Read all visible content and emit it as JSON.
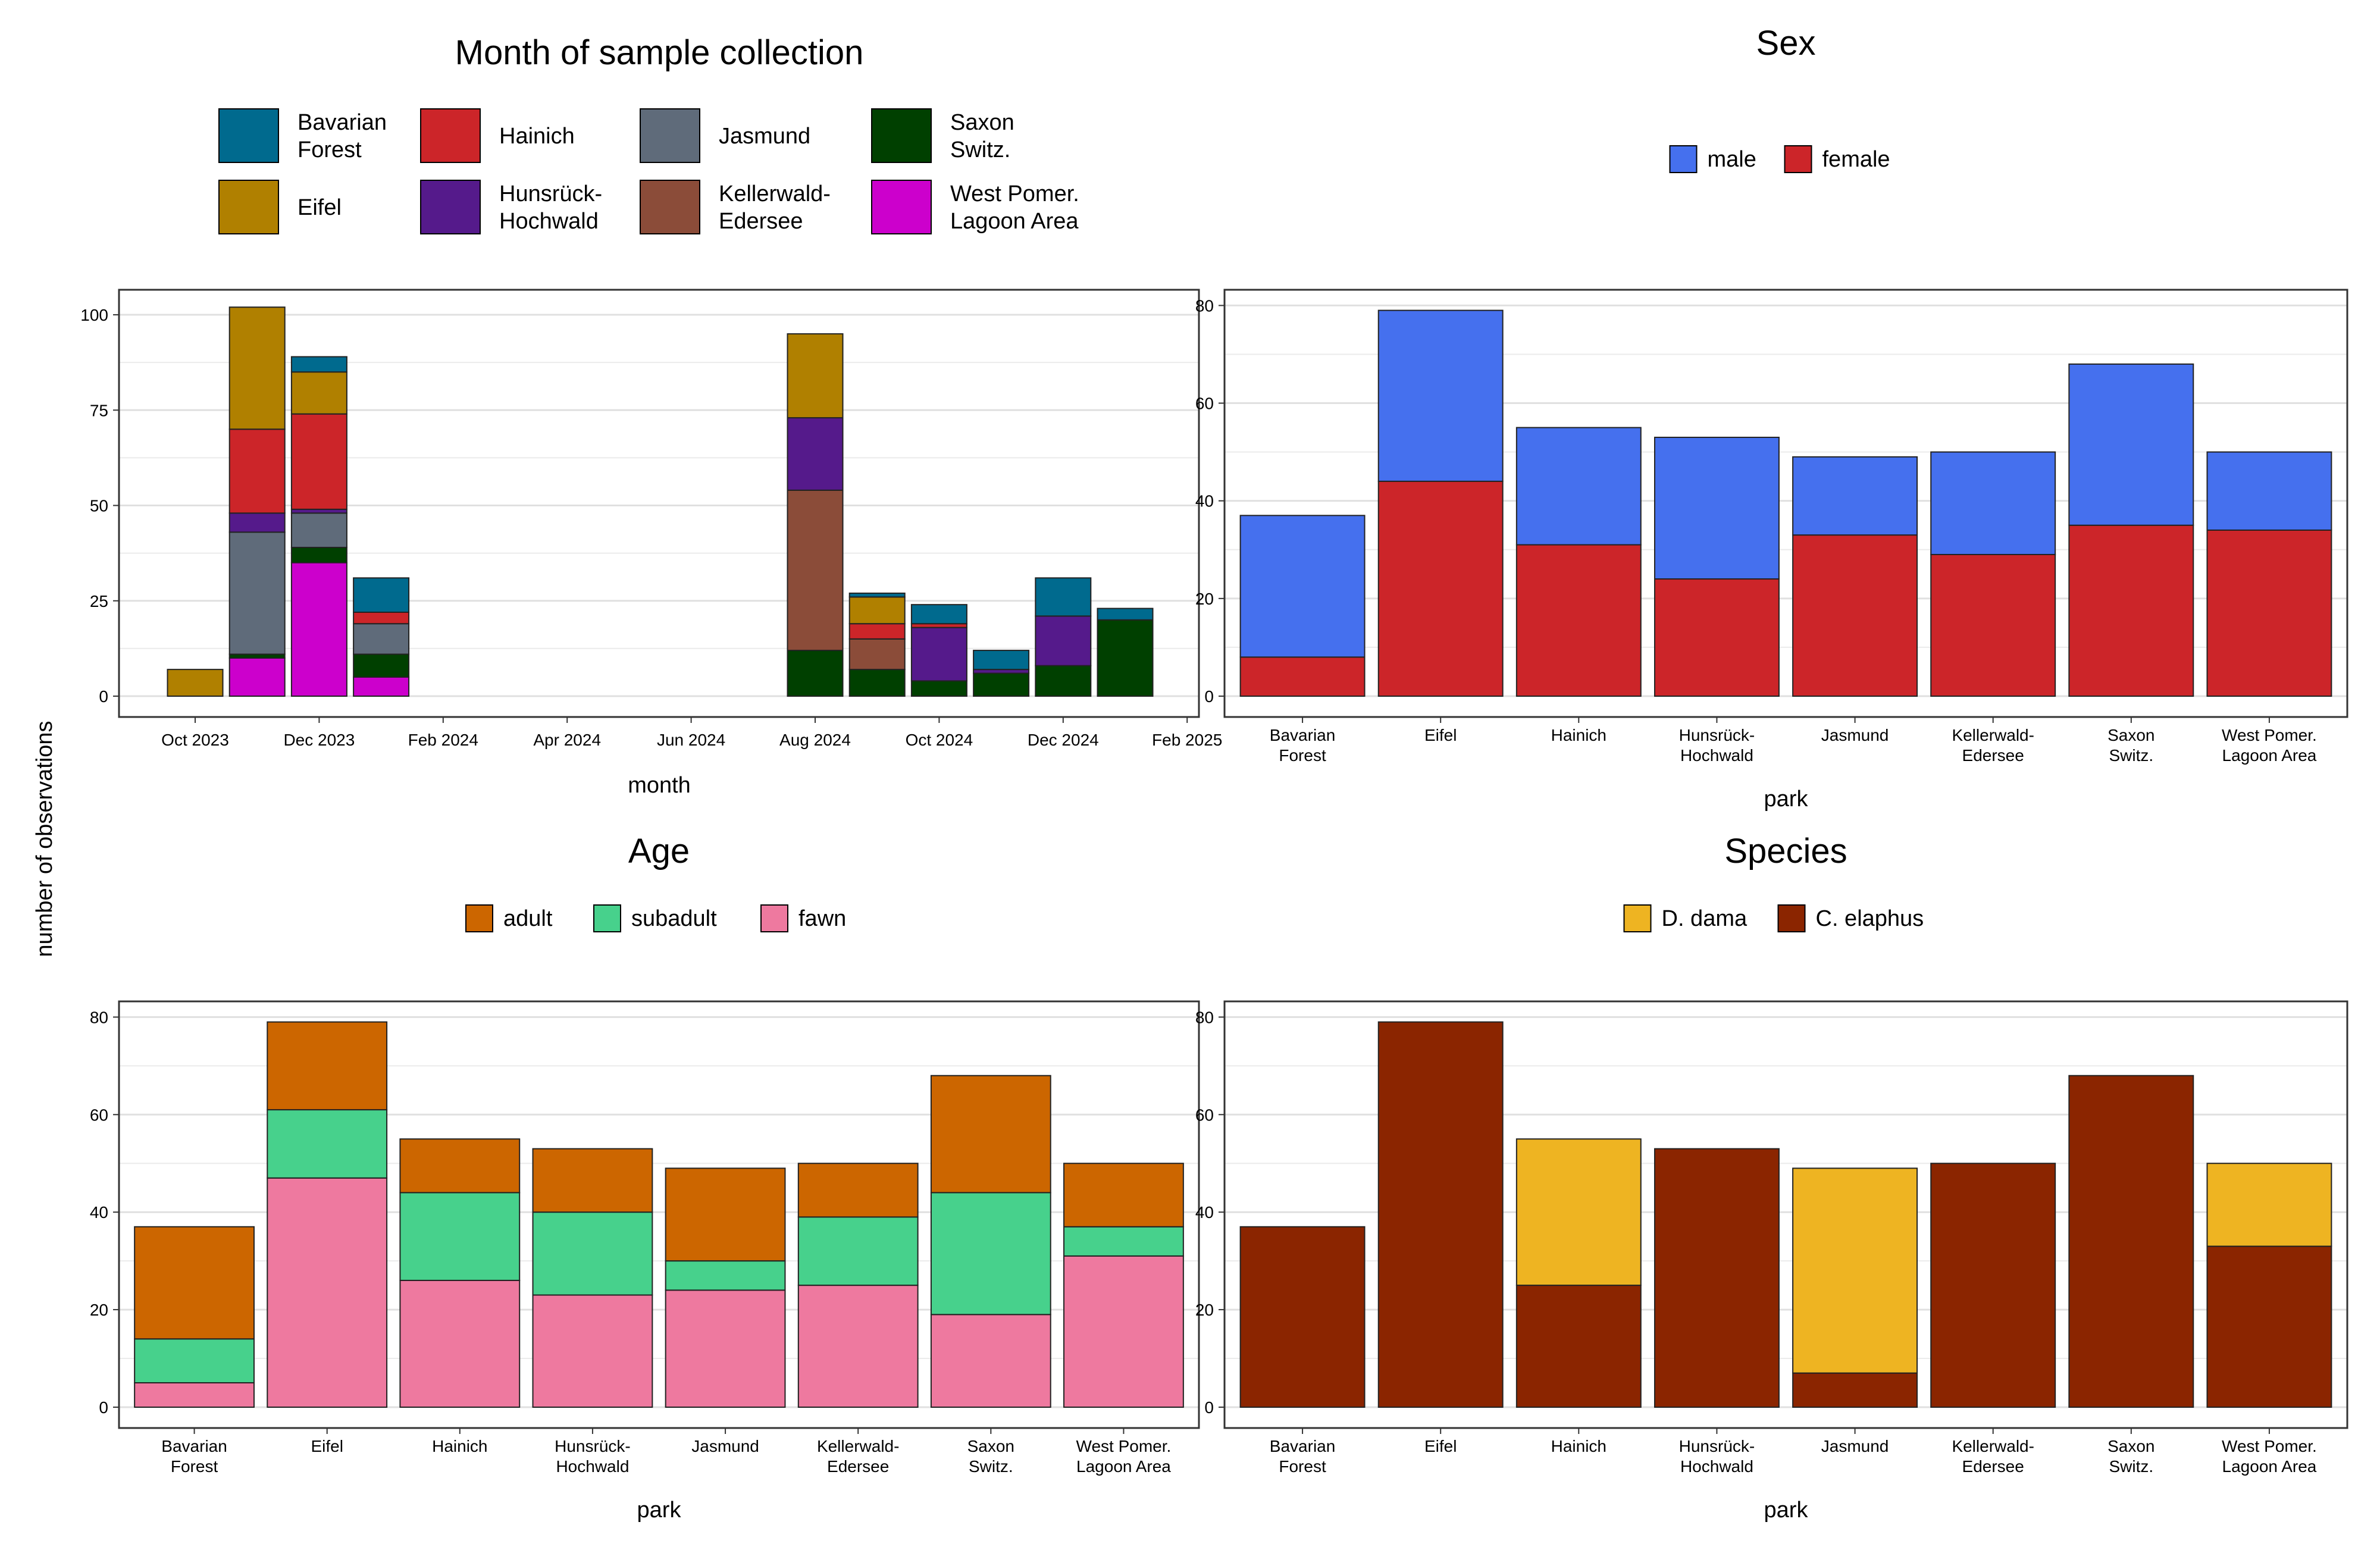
{
  "shared": {
    "ylabel": "number of observations"
  },
  "legend_keys": {
    "parks": [
      "Bavarian Forest",
      "Eifel",
      "Hainich",
      "Hunsrück-Hochwald",
      "Jasmund",
      "Kellerwald-Edersee",
      "Saxon Switz.",
      "West Pomer. Lagoon Area"
    ],
    "park_tick_labels": [
      [
        "Bavarian",
        "Forest"
      ],
      [
        "Eifel"
      ],
      [
        "Hainich"
      ],
      [
        "Hunsrück-",
        "Hochwald"
      ],
      [
        "Jasmund"
      ],
      [
        "Kellerwald-",
        "Edersee"
      ],
      [
        "Saxon",
        "Switz."
      ],
      [
        "West Pomer.",
        "Lagoon Area"
      ]
    ],
    "park_colors": {
      "Bavarian Forest": "#006a8e",
      "Eifel": "#b08000",
      "Hainich": "#cc2529",
      "Hunsrück-Hochwald": "#551a8b",
      "Jasmund": "#5f6b7a",
      "Kellerwald-Edersee": "#8b4c39",
      "Saxon Switz.": "#004000",
      "West Pomer. Lagoon Area": "#cc00cc"
    },
    "park_legend_labels": [
      {
        "park": "Bavarian Forest",
        "lines": [
          "Bavarian",
          "Forest"
        ]
      },
      {
        "park": "Hainich",
        "lines": [
          "Hainich"
        ]
      },
      {
        "park": "Jasmund",
        "lines": [
          "Jasmund"
        ]
      },
      {
        "park": "Saxon Switz.",
        "lines": [
          "Saxon",
          "Switz."
        ]
      },
      {
        "park": "Eifel",
        "lines": [
          "Eifel"
        ]
      },
      {
        "park": "Hunsrück-Hochwald",
        "lines": [
          "Hunsrück-",
          "Hochwald"
        ]
      },
      {
        "park": "Kellerwald-Edersee",
        "lines": [
          "Kellerwald-",
          "Edersee"
        ]
      },
      {
        "park": "West Pomer. Lagoon Area",
        "lines": [
          "West Pomer.",
          "Lagoon Area"
        ]
      }
    ]
  },
  "chart_data": [
    {
      "id": "month",
      "type": "bar",
      "stacked": true,
      "title": "Month of sample collection",
      "xlabel": "month",
      "ylabel": "number of observations",
      "ylim": [
        0,
        105
      ],
      "yticks": [
        0,
        25,
        50,
        75,
        100
      ],
      "xticks": [
        "Oct 2023",
        "Dec 2023",
        "Feb 2024",
        "Apr 2024",
        "Jun 2024",
        "Aug 2024",
        "Oct 2024",
        "Dec 2024",
        "Feb 2025"
      ],
      "legend": "top",
      "grid": true,
      "bars": [
        {
          "month": "Oct 2023",
          "stack": [
            {
              "park": "Eifel",
              "value": 7
            }
          ]
        },
        {
          "month": "Nov 2023",
          "stack": [
            {
              "park": "West Pomer. Lagoon Area",
              "value": 10
            },
            {
              "park": "Saxon Switz.",
              "value": 1
            },
            {
              "park": "Jasmund",
              "value": 32
            },
            {
              "park": "Hunsrück-Hochwald",
              "value": 5
            },
            {
              "park": "Hainich",
              "value": 22
            },
            {
              "park": "Eifel",
              "value": 32
            }
          ]
        },
        {
          "month": "Dec 2023",
          "stack": [
            {
              "park": "West Pomer. Lagoon Area",
              "value": 35
            },
            {
              "park": "Saxon Switz.",
              "value": 4
            },
            {
              "park": "Jasmund",
              "value": 9
            },
            {
              "park": "Hunsrück-Hochwald",
              "value": 1
            },
            {
              "park": "Hainich",
              "value": 25
            },
            {
              "park": "Eifel",
              "value": 11
            },
            {
              "park": "Bavarian Forest",
              "value": 4
            }
          ]
        },
        {
          "month": "Jan 2024",
          "stack": [
            {
              "park": "West Pomer. Lagoon Area",
              "value": 5
            },
            {
              "park": "Saxon Switz.",
              "value": 6
            },
            {
              "park": "Jasmund",
              "value": 8
            },
            {
              "park": "Hainich",
              "value": 3
            },
            {
              "park": "Bavarian Forest",
              "value": 9
            }
          ]
        },
        {
          "month": "Aug 2024",
          "stack": [
            {
              "park": "Saxon Switz.",
              "value": 12
            },
            {
              "park": "Kellerwald-Edersee",
              "value": 42
            },
            {
              "park": "Hunsrück-Hochwald",
              "value": 19
            },
            {
              "park": "Eifel",
              "value": 22
            }
          ]
        },
        {
          "month": "Sep 2024",
          "stack": [
            {
              "park": "Saxon Switz.",
              "value": 7
            },
            {
              "park": "Kellerwald-Edersee",
              "value": 8
            },
            {
              "park": "Hainich",
              "value": 4
            },
            {
              "park": "Eifel",
              "value": 7
            },
            {
              "park": "Bavarian Forest",
              "value": 1
            }
          ]
        },
        {
          "month": "Oct 2024",
          "stack": [
            {
              "park": "Saxon Switz.",
              "value": 4
            },
            {
              "park": "Hunsrück-Hochwald",
              "value": 14
            },
            {
              "park": "Hainich",
              "value": 1
            },
            {
              "park": "Bavarian Forest",
              "value": 5
            }
          ]
        },
        {
          "month": "Nov 2024",
          "stack": [
            {
              "park": "Saxon Switz.",
              "value": 6
            },
            {
              "park": "Hunsrück-Hochwald",
              "value": 1
            },
            {
              "park": "Bavarian Forest",
              "value": 5
            }
          ]
        },
        {
          "month": "Dec 2024",
          "stack": [
            {
              "park": "Saxon Switz.",
              "value": 8
            },
            {
              "park": "Hunsrück-Hochwald",
              "value": 13
            },
            {
              "park": "Bavarian Forest",
              "value": 10
            }
          ]
        },
        {
          "month": "Jan 2025",
          "stack": [
            {
              "park": "Saxon Switz.",
              "value": 20
            },
            {
              "park": "Bavarian Forest",
              "value": 3
            }
          ]
        }
      ]
    },
    {
      "id": "sex",
      "type": "bar",
      "stacked": true,
      "title": "Sex",
      "xlabel": "park",
      "ylim": [
        0,
        82
      ],
      "yticks": [
        0,
        20,
        40,
        60,
        80
      ],
      "legend": "top",
      "grid": true,
      "categories": [
        "Bavarian Forest",
        "Eifel",
        "Hainich",
        "Hunsrück-Hochwald",
        "Jasmund",
        "Kellerwald-Edersee",
        "Saxon Switz.",
        "West Pomer. Lagoon Area"
      ],
      "series": [
        {
          "name": "female",
          "color": "#cc2529",
          "values": [
            8,
            44,
            31,
            24,
            33,
            29,
            35,
            34
          ]
        },
        {
          "name": "male",
          "color": "#4570ee",
          "values": [
            29,
            35,
            24,
            29,
            16,
            21,
            33,
            16
          ]
        }
      ],
      "legend_order": [
        "male",
        "female"
      ]
    },
    {
      "id": "age",
      "type": "bar",
      "stacked": true,
      "title": "Age",
      "xlabel": "park",
      "ylim": [
        0,
        82
      ],
      "yticks": [
        0,
        20,
        40,
        60,
        80
      ],
      "legend": "top",
      "grid": true,
      "categories": [
        "Bavarian Forest",
        "Eifel",
        "Hainich",
        "Hunsrück-Hochwald",
        "Jasmund",
        "Kellerwald-Edersee",
        "Saxon Switz.",
        "West Pomer. Lagoon Area"
      ],
      "series": [
        {
          "name": "fawn",
          "color": "#ee799f",
          "values": [
            5,
            47,
            26,
            23,
            24,
            25,
            19,
            31
          ]
        },
        {
          "name": "subadult",
          "color": "#47d18c",
          "values": [
            9,
            14,
            18,
            17,
            6,
            14,
            25,
            6
          ]
        },
        {
          "name": "adult",
          "color": "#cc6600",
          "values": [
            23,
            18,
            11,
            13,
            19,
            11,
            24,
            13
          ]
        }
      ],
      "legend_order": [
        "adult",
        "subadult",
        "fawn"
      ]
    },
    {
      "id": "species",
      "type": "bar",
      "stacked": true,
      "title": "Species",
      "xlabel": "park",
      "ylim": [
        0,
        82
      ],
      "yticks": [
        0,
        20,
        40,
        60,
        80
      ],
      "legend": "top",
      "grid": true,
      "categories": [
        "Bavarian Forest",
        "Eifel",
        "Hainich",
        "Hunsrück-Hochwald",
        "Jasmund",
        "Kellerwald-Edersee",
        "Saxon Switz.",
        "West Pomer. Lagoon Area"
      ],
      "series": [
        {
          "name": "C. elaphus",
          "color": "#8b2500",
          "values": [
            37,
            79,
            25,
            53,
            7,
            50,
            68,
            33
          ]
        },
        {
          "name": "D. dama",
          "color": "#eeb422",
          "values": [
            0,
            0,
            30,
            0,
            42,
            0,
            0,
            17
          ]
        }
      ],
      "legend_order": [
        "D. dama",
        "C. elaphus"
      ]
    }
  ]
}
